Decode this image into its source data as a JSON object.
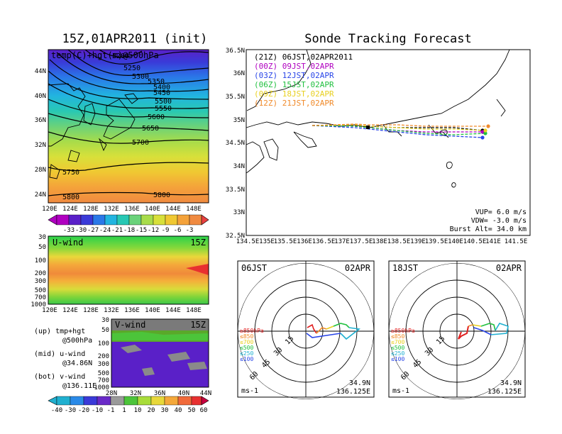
{
  "left_map": {
    "title": "15Z,01APR2011 (init)",
    "inner_label": "temp(C)+hgt(m)@500hPa",
    "lat_labels": [
      "44N",
      "40N",
      "36N",
      "32N",
      "28N",
      "24N"
    ],
    "lon_labels": [
      "120E",
      "124E",
      "128E",
      "132E",
      "136E",
      "140E",
      "144E",
      "148E"
    ],
    "contour_labels": [
      "5200",
      "5250",
      "5300",
      "5350",
      "5400",
      "5450",
      "5500",
      "5550",
      "5600",
      "5650",
      "5700",
      "5750",
      "5800",
      "5800"
    ],
    "colorbar_labels": [
      "-33",
      "-30",
      "-27",
      "-24",
      "-21",
      "-18",
      "-15",
      "-12",
      "-9",
      "-6",
      "-3"
    ]
  },
  "uwind_panel": {
    "label": "U-wind",
    "time": "15Z",
    "pressure_labels": [
      "30",
      "50",
      "100",
      "200",
      "300",
      "500",
      "700",
      "1000"
    ],
    "lon_labels": [
      "120E",
      "124E",
      "128E",
      "132E",
      "136E",
      "140E",
      "144E",
      "148E"
    ]
  },
  "vwind_panel": {
    "label": "V-wind",
    "time": "15Z",
    "pressure_labels": [
      "30",
      "50",
      "100",
      "200",
      "300",
      "500",
      "700",
      "1000"
    ],
    "lat_labels": [
      "28N",
      "32N",
      "36N",
      "40N",
      "44N"
    ]
  },
  "legend": {
    "up_1": "(up) tmp+hgt",
    "up_2": "@500hPa",
    "mid_1": "(mid) u-wind",
    "mid_2": "@34.86N",
    "bot_1": "(bot) v-wind",
    "bot_2": "@136.11E"
  },
  "wind_colorbar_labels": [
    "-40",
    "-30",
    "-20",
    "-10",
    "-1",
    "1",
    "10",
    "20",
    "30",
    "40",
    "50",
    "60"
  ],
  "track_map": {
    "title": "Sonde Tracking Forecast",
    "lat_labels": [
      "36.5N",
      "36N",
      "35.5N",
      "35N",
      "34.5N",
      "34N",
      "33.5N",
      "33N",
      "32.5N"
    ],
    "lon_labels": [
      "134.5E",
      "135E",
      "135.5E",
      "136E",
      "136.5E",
      "137E",
      "137.5E",
      "138E",
      "138.5E",
      "139E",
      "139.5E",
      "140E",
      "140.5E",
      "141E",
      "141.5E"
    ],
    "runs": [
      {
        "text": "(21Z) 06JST,02APR2011",
        "color": "#000000"
      },
      {
        "text": "(00Z) 09JST,02APR",
        "color": "#b000c0"
      },
      {
        "text": "(03Z) 12JST,02APR",
        "color": "#2a46e8"
      },
      {
        "text": "(06Z) 15JST,02APR",
        "color": "#22c040"
      },
      {
        "text": "(09Z) 18JST,02APR",
        "color": "#e8d020"
      },
      {
        "text": "(12Z) 21JST,02APR",
        "color": "#f08a2a"
      }
    ],
    "vup": "VUP= 6.0 m/s",
    "vdw": "VDW= -3.0 m/s",
    "burst": "Burst Alt= 34.0 km"
  },
  "hodo_left": {
    "time": "06JST",
    "date": "02APR",
    "ring_labels": [
      "15",
      "30",
      "45",
      "60"
    ],
    "levels": [
      {
        "text": "≥850hPa",
        "color": "#e02020"
      },
      {
        "text": "≤850",
        "color": "#f08a2a"
      },
      {
        "text": "≤700",
        "color": "#e8d020"
      },
      {
        "text": "≤500",
        "color": "#22c040"
      },
      {
        "text": "≤250",
        "color": "#20b0d0"
      },
      {
        "text": "≤100",
        "color": "#2a46e8"
      }
    ],
    "unit": "ms-1",
    "lat": "34.9N",
    "lon": "136.125E"
  },
  "hodo_right": {
    "time": "18JST",
    "date": "02APR",
    "ring_labels": [
      "15",
      "30",
      "45",
      "60"
    ],
    "levels": [
      {
        "text": "≥850hPa",
        "color": "#e02020"
      },
      {
        "text": "≤850",
        "color": "#f08a2a"
      },
      {
        "text": "≤700",
        "color": "#e8d020"
      },
      {
        "text": "≤500",
        "color": "#22c040"
      },
      {
        "text": "≤250",
        "color": "#20b0d0"
      },
      {
        "text": "≤100",
        "color": "#2a46e8"
      }
    ],
    "unit": "ms-1",
    "lat": "34.9N",
    "lon": "136.125E"
  }
}
